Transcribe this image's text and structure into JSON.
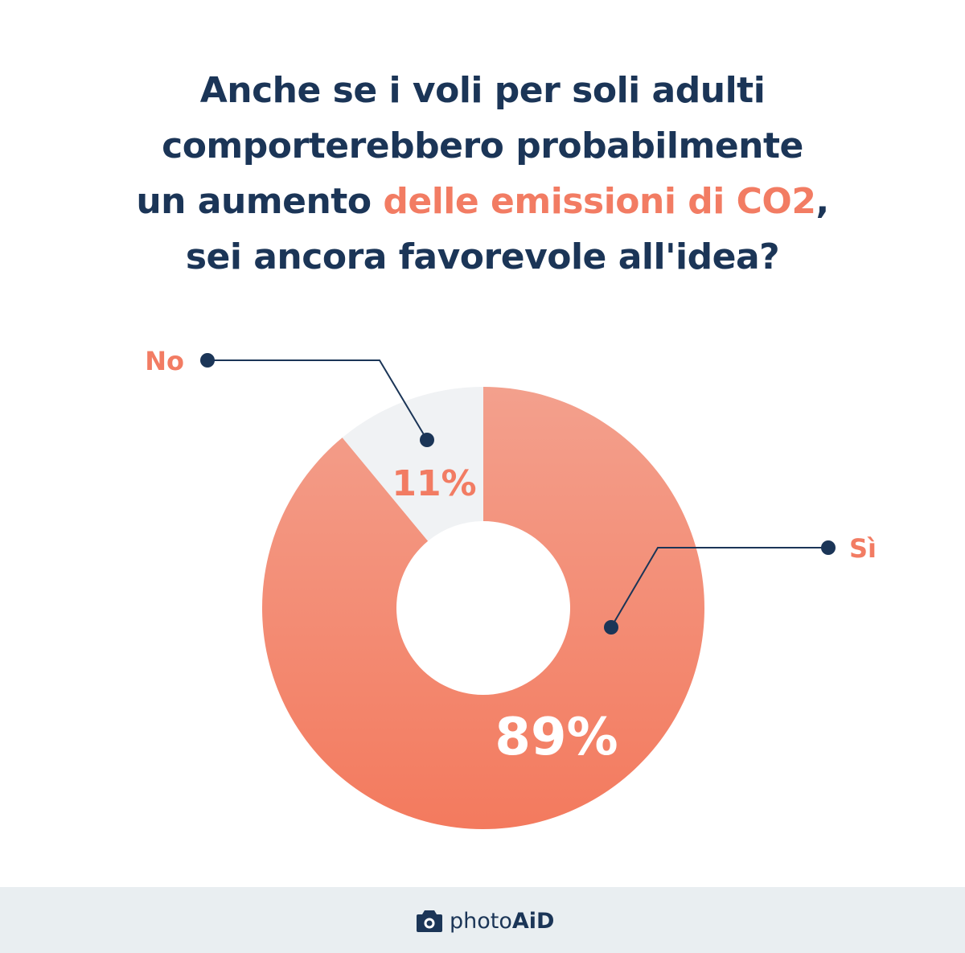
{
  "title": {
    "line1": "Anche se i voli per soli adulti",
    "line2": "comporterebbero probabilmente",
    "line3_before": "un aumento ",
    "line3_highlight": "delle emissioni di CO2",
    "line3_after": ",",
    "line4": "sei ancora favorevole all'idea?"
  },
  "colors": {
    "navy": "#1b3557",
    "accent": "#f27c63",
    "slice_light": "#f0f2f4",
    "gradient_top": "#f3a08d",
    "gradient_bottom": "#f37a5e",
    "footer_bg": "#e9eef1"
  },
  "chart_data": {
    "type": "pie",
    "variant": "donut",
    "slices": [
      {
        "label": "Sì",
        "value": 89,
        "value_label": "89%"
      },
      {
        "label": "No",
        "value": 11,
        "value_label": "11%"
      }
    ]
  },
  "footer": {
    "brand_icon": "camera-icon",
    "brand_light": "photo",
    "brand_bold": "AiD"
  }
}
